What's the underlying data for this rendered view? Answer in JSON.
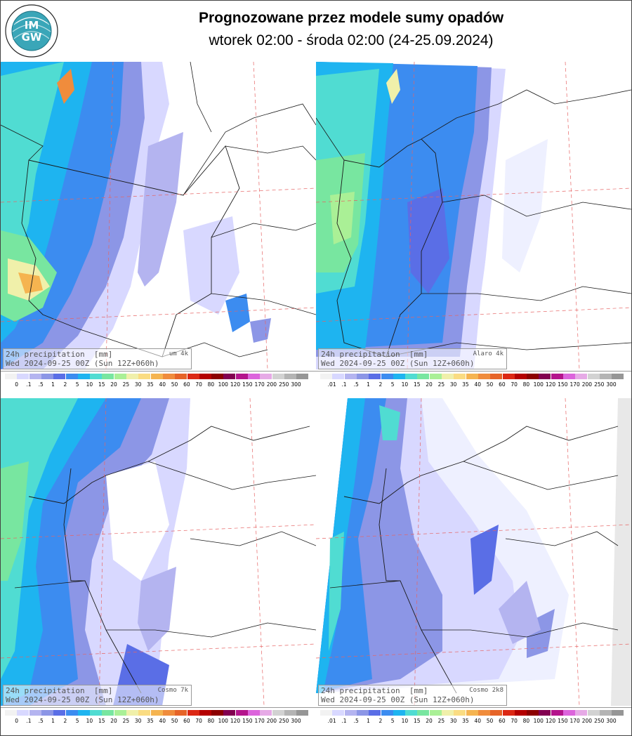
{
  "header": {
    "logo_text": "IMGW",
    "title": "Prognozowane przez modele sumy opadów",
    "subtitle": "wtorek 02:00 - środa 02:00 (24-25.09.2024)"
  },
  "colors": {
    "scale": [
      "#f2f2f2",
      "#d8d8ff",
      "#b4b4f0",
      "#8c96e6",
      "#5a6ee6",
      "#3c8cf0",
      "#1eb4f0",
      "#50dcd2",
      "#78e6a0",
      "#aaf096",
      "#f0f0aa",
      "#fadc82",
      "#f5b450",
      "#f08c3c",
      "#e66428",
      "#dc2814",
      "#b40000",
      "#8c0000",
      "#820050",
      "#b4148c",
      "#dc64dc",
      "#e6aae6",
      "#d2d2d2",
      "#b4b4b4",
      "#969696",
      "#6e6e6e",
      "#4a3c3c"
    ],
    "border": "#1a1a1a",
    "grid": "#e66464"
  },
  "panels": [
    {
      "label_line1": "24h precipitation  [mm]",
      "label_line2": "Wed 2024-09-25 00Z (Sun 12Z+060h)",
      "model_name": "um 4k",
      "scale_labels": [
        "0",
        ".1",
        ".5",
        "1",
        "2",
        "5",
        "10",
        "15",
        "20",
        "25",
        "30",
        "35",
        "40",
        "50",
        "60",
        "70",
        "80",
        "100",
        "120",
        "150",
        "170",
        "200",
        "250",
        "300"
      ]
    },
    {
      "label_line1": "24h precipitation  [mm]",
      "label_line2": "Wed 2024-09-25 00Z (Sun 12Z+060h)",
      "model_name": "Alaro 4k",
      "scale_labels": [
        ".01",
        ".1",
        ".5",
        "1",
        "2",
        "5",
        "10",
        "15",
        "20",
        "25",
        "30",
        "35",
        "40",
        "50",
        "60",
        "70",
        "80",
        "100",
        "120",
        "150",
        "170",
        "200",
        "250",
        "300"
      ]
    },
    {
      "label_line1": "24h precipitation  [mm]",
      "label_line2": "Wed 2024-09-25 00Z (Sun 12Z+060h)",
      "model_name": "Cosmo 7k",
      "scale_labels": [
        "0",
        ".1",
        ".5",
        "1",
        "2",
        "5",
        "10",
        "15",
        "20",
        "25",
        "30",
        "35",
        "40",
        "50",
        "60",
        "70",
        "80",
        "100",
        "120",
        "150",
        "170",
        "200",
        "250",
        "300"
      ]
    },
    {
      "label_line1": "24h precipitation  [mm]",
      "label_line2": "Wed 2024-09-25 00Z (Sun 12Z+060h)",
      "model_name": "Cosmo 2k8",
      "scale_labels": [
        ".01",
        ".1",
        ".5",
        "1",
        "2",
        "5",
        "10",
        "15",
        "20",
        "25",
        "30",
        "35",
        "40",
        "50",
        "60",
        "70",
        "80",
        "100",
        "120",
        "150",
        "170",
        "200",
        "250",
        "300"
      ]
    }
  ]
}
